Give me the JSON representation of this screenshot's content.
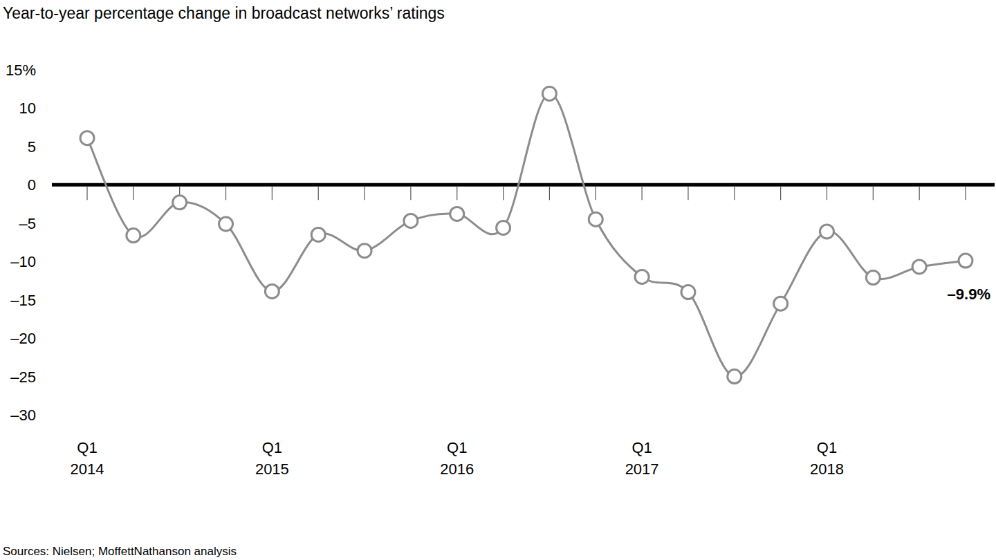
{
  "chart_data": {
    "type": "line",
    "title": "Year-to-year percentage change in broadcast networks’ ratings",
    "source": "Sources: Nielsen; MoffettNathanson analysis",
    "categories": [
      "Q1 2014",
      null,
      null,
      null,
      "Q1 2015",
      null,
      null,
      null,
      "Q1 2016",
      null,
      null,
      null,
      "Q1 2017",
      null,
      null,
      null,
      "Q1 2018",
      null,
      null,
      null
    ],
    "series": [
      {
        "name": "Broadcast networks’ ratings",
        "color": "#8c8c8c",
        "marker": "circle",
        "line_style": "solid",
        "values": [
          6.1,
          -6.6,
          -2.3,
          -5.1,
          -13.9,
          -6.5,
          -8.6,
          -4.7,
          -3.8,
          -5.6,
          11.9,
          -4.5,
          -12.0,
          -14.0,
          -25.0,
          -15.5,
          -6.1,
          -12.1,
          -10.7,
          -9.9
        ],
        "value_labels": [
          null,
          null,
          null,
          null,
          null,
          null,
          null,
          null,
          null,
          null,
          null,
          null,
          null,
          null,
          null,
          null,
          null,
          null,
          null,
          "–9.9%"
        ]
      }
    ],
    "data_labels": true,
    "ylim": [
      -30,
      15
    ],
    "yticks": [
      {
        "value": -30,
        "label": "–30"
      },
      {
        "value": -25,
        "label": "–25"
      },
      {
        "value": -20,
        "label": "–20"
      },
      {
        "value": -15,
        "label": "–15"
      },
      {
        "value": -10,
        "label": "–10"
      },
      {
        "value": -5,
        "label": "–5"
      },
      0,
      5,
      10,
      {
        "value": 15,
        "label": "15%"
      }
    ],
    "grid": false
  }
}
